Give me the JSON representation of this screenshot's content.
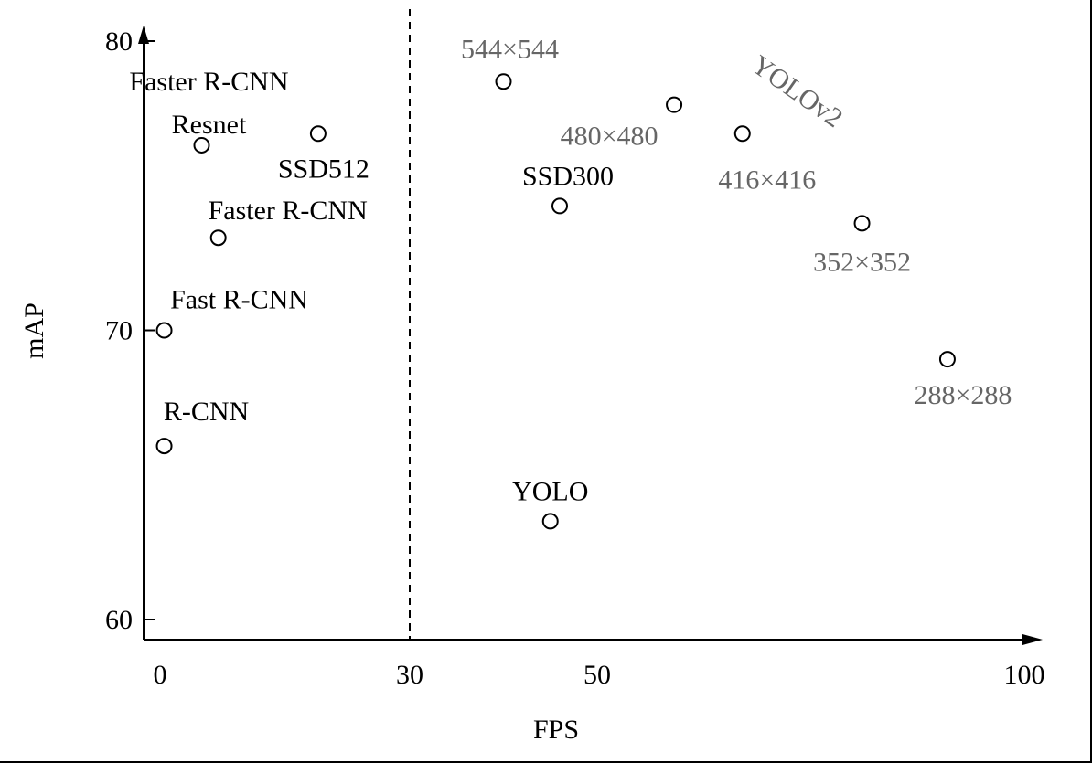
{
  "chart_data": {
    "type": "scatter",
    "title": "",
    "xlabel": "FPS",
    "ylabel": "mAP",
    "xlim": [
      0,
      100
    ],
    "ylim": [
      60,
      80
    ],
    "x_ticks": [
      0,
      30,
      50,
      100
    ],
    "y_ticks": [
      60,
      70,
      80
    ],
    "grid": false,
    "reference_line": {
      "x": 30,
      "style": "dashed"
    },
    "group_label": "YOLOv2",
    "colors": {
      "black": "#000000",
      "yolov2": "#666666"
    },
    "points": [
      {
        "label": "R-CNN",
        "x": 0.5,
        "y": 66.0,
        "series": "other"
      },
      {
        "label": "Fast R-CNN",
        "x": 0.5,
        "y": 70.0,
        "series": "other"
      },
      {
        "label": "Faster R-CNN",
        "x": 7,
        "y": 73.2,
        "series": "other"
      },
      {
        "label": "Faster R-CNN",
        "label2": "Resnet",
        "x": 5,
        "y": 76.4,
        "series": "other"
      },
      {
        "label": "YOLO",
        "x": 45,
        "y": 63.4,
        "series": "other"
      },
      {
        "label": "SSD300",
        "x": 46,
        "y": 74.3,
        "series": "other"
      },
      {
        "label": "SSD512",
        "x": 19,
        "y": 76.8,
        "series": "other"
      },
      {
        "label": "288×288",
        "x": 91,
        "y": 69.0,
        "series": "YOLOv2"
      },
      {
        "label": "352×352",
        "x": 81,
        "y": 73.7,
        "series": "YOLOv2"
      },
      {
        "label": "416×416",
        "x": 67,
        "y": 76.8,
        "series": "YOLOv2"
      },
      {
        "label": "480×480",
        "x": 59,
        "y": 77.8,
        "series": "YOLOv2"
      },
      {
        "label": "544×544",
        "x": 40,
        "y": 78.6,
        "series": "YOLOv2"
      }
    ]
  }
}
